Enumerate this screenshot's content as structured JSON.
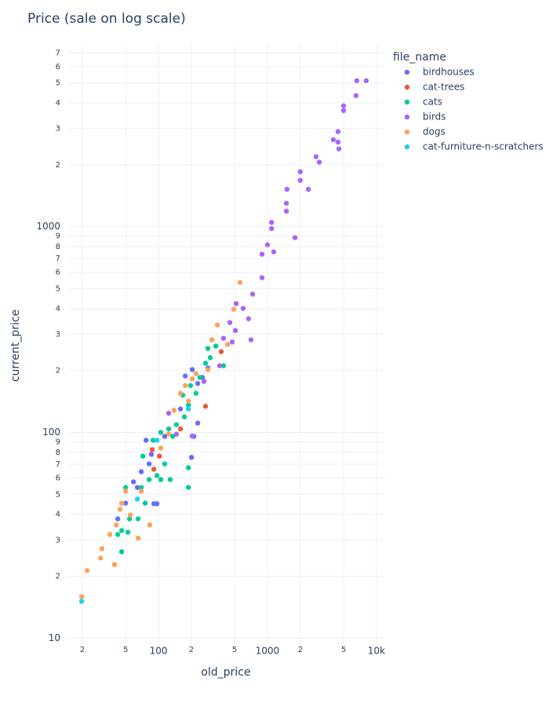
{
  "chart_data": {
    "type": "scatter",
    "title": "Price  (sale on log scale)",
    "x_label": "old_price",
    "y_label": "current_price",
    "legend_title": "file_name",
    "legend_position": "right",
    "xscale": "log",
    "yscale": "log",
    "grid": true,
    "xlim": [
      14.6,
      12000
    ],
    "ylim": [
      9.1,
      7600
    ],
    "xticks": [
      {
        "value": 20,
        "label": "2"
      },
      {
        "value": 50,
        "label": "5"
      },
      100,
      {
        "value": 200,
        "label": "2"
      },
      {
        "value": 500,
        "label": "5"
      },
      1000,
      {
        "value": 2000,
        "label": "2"
      },
      {
        "value": 5000,
        "label": "5"
      },
      {
        "value": 10000,
        "label": "10k"
      }
    ],
    "yticks": [
      10,
      {
        "value": 20,
        "label": "2"
      },
      {
        "value": 30,
        "label": "3"
      },
      {
        "value": 40,
        "label": "4"
      },
      {
        "value": 50,
        "label": "5"
      },
      {
        "value": 60,
        "label": "6"
      },
      {
        "value": 70,
        "label": "7"
      },
      {
        "value": 80,
        "label": "8"
      },
      {
        "value": 90,
        "label": "9"
      },
      100,
      {
        "value": 200,
        "label": "2"
      },
      {
        "value": 300,
        "label": "3"
      },
      {
        "value": 400,
        "label": "4"
      },
      {
        "value": 500,
        "label": "5"
      },
      {
        "value": 600,
        "label": "6"
      },
      {
        "value": 700,
        "label": "7"
      },
      {
        "value": 800,
        "label": "8"
      },
      {
        "value": 900,
        "label": "9"
      },
      1000,
      {
        "value": 2000,
        "label": "2"
      },
      {
        "value": 3000,
        "label": "3"
      },
      {
        "value": 4000,
        "label": "4"
      },
      {
        "value": 5000,
        "label": "5"
      },
      {
        "value": 6000,
        "label": "6"
      },
      {
        "value": 7000,
        "label": "7"
      }
    ],
    "series": [
      {
        "name": "birdhouses",
        "color": "#636efa",
        "x": [
          201,
          211,
          229,
          176,
          229,
          253,
          86,
          82,
          64,
          58.9,
          42.3,
          49.9,
          90.6,
          96.8,
          159,
          284,
          204,
          69.5,
          76.8,
          114
        ],
        "values": [
          75.6,
          95.7,
          111,
          188,
          173,
          185,
          78.2,
          70.3,
          54.0,
          57.5,
          38.0,
          45.3,
          45.0,
          45.0,
          130,
          206,
          202,
          64.4,
          91.6,
          95.7
        ]
      },
      {
        "name": "cat-trees",
        "color": "#ef553b",
        "x": [
          270,
          376,
          87.5,
          90.6,
          159,
          102
        ],
        "values": [
          134,
          247,
          82.5,
          66.2,
          104,
          76.7
        ]
      },
      {
        "name": "cats",
        "color": "#00cc96",
        "x": [
          188,
          128,
          188,
          105,
          96.8,
          82,
          69.5,
          54.2,
          52.4,
          45.9,
          45.9,
          75.5,
          114,
          135,
          124,
          105,
          146,
          173,
          188,
          221,
          240,
          270,
          284,
          335,
          395,
          298,
          167,
          197,
          65,
          71.8,
          89.1,
          42.3,
          49.9
        ],
        "values": [
          54.0,
          59.0,
          67.3,
          59.0,
          61.7,
          59.0,
          54.0,
          38.0,
          32.7,
          33.3,
          26.3,
          45.3,
          70.3,
          95.7,
          104,
          100,
          109,
          119,
          136,
          155,
          185,
          217,
          256,
          263,
          211,
          231,
          152,
          169,
          38.0,
          76.7,
          91.6,
          31.9,
          54.0
        ]
      },
      {
        "name": "birds",
        "color": "#ab63fa",
        "x": [
          6600,
          8050,
          6500,
          4990,
          4990,
          4440,
          4020,
          4440,
          4520,
          2790,
          2990,
          2000,
          2000,
          1510,
          2370,
          1490,
          1490,
          1790,
          1090,
          1090,
          1000,
          1140,
          891,
          891,
          730,
          598,
          516,
          507,
          474,
          706,
          395,
          671,
          452,
          146,
          124,
          204,
          364,
          261
        ],
        "values": [
          5130,
          5130,
          4340,
          3870,
          3670,
          2900,
          2650,
          2580,
          2390,
          2190,
          2060,
          1850,
          1680,
          1520,
          1520,
          1300,
          1190,
          885,
          980,
          1050,
          817,
          755,
          735,
          565,
          470,
          401,
          423,
          313,
          275,
          282,
          287,
          357,
          342,
          98,
          124,
          96,
          211,
          177
        ]
      },
      {
        "name": "dogs",
        "color": "#ffa15a",
        "x": [
          560,
          491,
          347,
          309,
          284,
          221,
          204,
          176,
          139,
          124,
          105,
          69.5,
          45.9,
          35.8,
          30.3,
          29.4,
          39.5,
          22.1,
          19.7,
          83.3,
          65,
          55.1,
          40.9,
          44.4,
          188,
          159,
          430,
          49.9
        ],
        "values": [
          536,
          397,
          333,
          282,
          202,
          193,
          182,
          169,
          128,
          98.2,
          83.9,
          51.8,
          45.3,
          31.9,
          27.2,
          24.5,
          22.8,
          21.3,
          15.9,
          35.5,
          30.6,
          39.7,
          35.5,
          42.3,
          142,
          155,
          268,
          51.8
        ]
      },
      {
        "name": "cat-furniture-n-scratchers",
        "color": "#19d3f3",
        "x": [
          19.7,
          64,
          96.8,
          188
        ],
        "values": [
          15.1,
          47.4,
          91.6,
          130
        ]
      }
    ]
  }
}
